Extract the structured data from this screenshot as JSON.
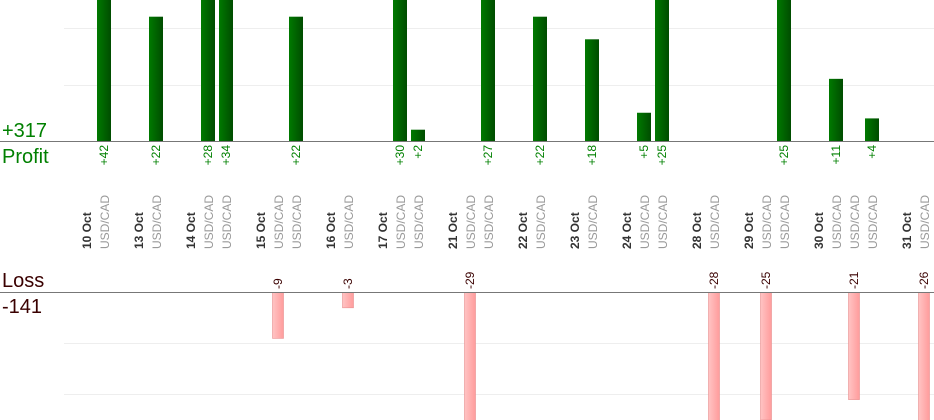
{
  "summary": {
    "profit_total": "+317",
    "profit_label": "Profit",
    "loss_label": "Loss",
    "loss_total": "-141"
  },
  "colors": {
    "profit": "#006600",
    "profit_text": "#008000",
    "loss_fill": "#ffb3b3",
    "loss_text": "#3a0000",
    "date_text": "#333333",
    "symbol_text": "#999999"
  },
  "chart_data": {
    "type": "bar",
    "grid": true,
    "gridline_step": 10,
    "groups": [
      {
        "date": "10 Oct",
        "trades": [
          {
            "symbol": "USD/CAD",
            "value": 42
          }
        ]
      },
      {
        "date": "13 Oct",
        "trades": [
          {
            "symbol": "USD/CAD",
            "value": 22
          }
        ]
      },
      {
        "date": "14 Oct",
        "trades": [
          {
            "symbol": "USD/CAD",
            "value": 28
          },
          {
            "symbol": "USD/CAD",
            "value": 34
          }
        ]
      },
      {
        "date": "15 Oct",
        "trades": [
          {
            "symbol": "USD/CAD",
            "value": -9
          },
          {
            "symbol": "USD/CAD",
            "value": 22
          }
        ]
      },
      {
        "date": "16 Oct",
        "trades": [
          {
            "symbol": "USD/CAD",
            "value": -3
          }
        ]
      },
      {
        "date": "17 Oct",
        "trades": [
          {
            "symbol": "USD/CAD",
            "value": 30
          },
          {
            "symbol": "USD/CAD",
            "value": 2
          }
        ]
      },
      {
        "date": "21 Oct",
        "trades": [
          {
            "symbol": "USD/CAD",
            "value": -29
          },
          {
            "symbol": "USD/CAD",
            "value": 27
          }
        ]
      },
      {
        "date": "22 Oct",
        "trades": [
          {
            "symbol": "USD/CAD",
            "value": 22
          }
        ]
      },
      {
        "date": "23 Oct",
        "trades": [
          {
            "symbol": "USD/CAD",
            "value": 18
          }
        ]
      },
      {
        "date": "24 Oct",
        "trades": [
          {
            "symbol": "USD/CAD",
            "value": 5
          },
          {
            "symbol": "USD/CAD",
            "value": 25
          }
        ]
      },
      {
        "date": "28 Oct",
        "trades": [
          {
            "symbol": "USD/CAD",
            "value": -28
          }
        ]
      },
      {
        "date": "29 Oct",
        "trades": [
          {
            "symbol": "USD/CAD",
            "value": -25
          },
          {
            "symbol": "USD/CAD",
            "value": 25
          }
        ]
      },
      {
        "date": "30 Oct",
        "trades": [
          {
            "symbol": "USD/CAD",
            "value": 11
          },
          {
            "symbol": "USD/CAD",
            "value": -21
          },
          {
            "symbol": "USD/CAD",
            "value": 4
          }
        ]
      },
      {
        "date": "31 Oct",
        "trades": [
          {
            "symbol": "USD/CAD",
            "value": -26
          }
        ]
      }
    ]
  }
}
